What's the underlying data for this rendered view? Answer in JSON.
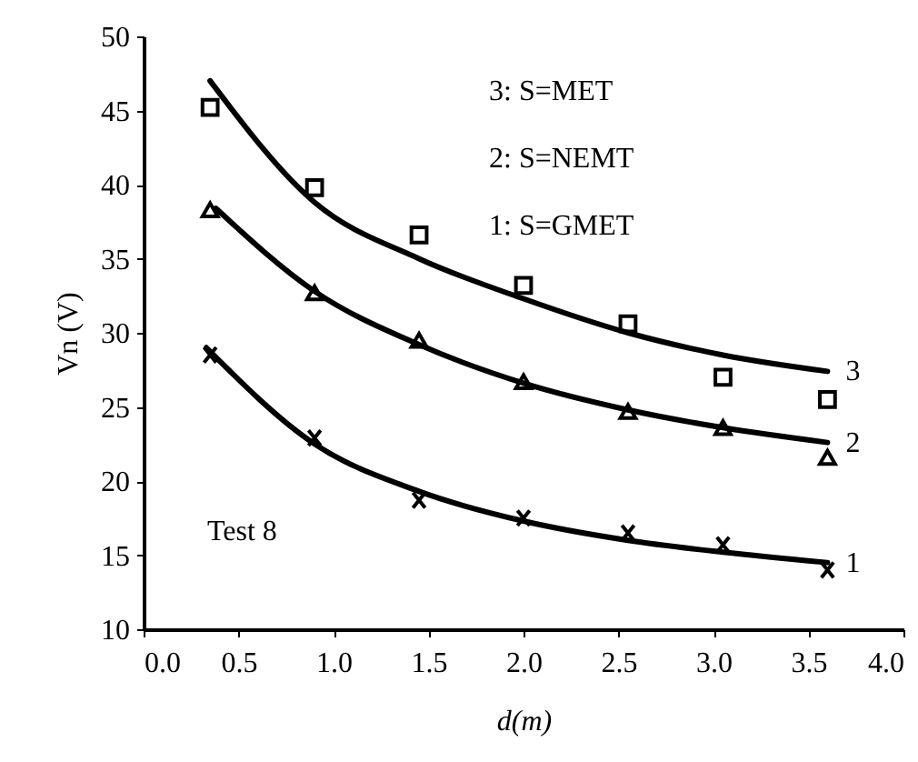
{
  "chart_data": {
    "type": "scatter",
    "xlabel": "d(m)",
    "ylabel": "Vn (V)",
    "xlim": [
      0,
      4
    ],
    "ylim": [
      10,
      50
    ],
    "xticks": [
      {
        "value": 0,
        "label": "0.0"
      },
      {
        "value": 0.5,
        "label": "0.5"
      },
      {
        "value": 1,
        "label": "1.0"
      },
      {
        "value": 1.5,
        "label": "1.5"
      },
      {
        "value": 2,
        "label": "2.0"
      },
      {
        "value": 2.5,
        "label": "2.5"
      },
      {
        "value": 3,
        "label": "3.0"
      },
      {
        "value": 3.5,
        "label": "3.5"
      },
      {
        "value": 4,
        "label": "4.0"
      }
    ],
    "yticks": [
      10,
      15,
      20,
      25,
      30,
      35,
      40,
      45,
      50
    ],
    "grid": false,
    "annotations": [
      "3:  S=MET",
      "2:  S=NEMT",
      "1:  S=GMET",
      "Test  8"
    ],
    "series": [
      {
        "marker": "square",
        "color": "#000000",
        "x": [
          0.35,
          0.9,
          1.45,
          2.0,
          2.55,
          3.05,
          3.6
        ],
        "values": [
          45.2,
          39.8,
          36.6,
          33.2,
          30.6,
          27.0,
          25.5
        ]
      },
      {
        "marker": "triangle",
        "color": "#000000",
        "x": [
          0.35,
          0.9,
          1.45,
          2.0,
          2.55,
          3.05,
          3.6
        ],
        "values": [
          38.3,
          32.7,
          29.5,
          26.7,
          24.7,
          23.6,
          21.6
        ]
      },
      {
        "marker": "cross",
        "color": "#000000",
        "x": [
          0.35,
          0.9,
          1.45,
          2.0,
          2.55,
          3.05,
          3.6
        ],
        "values": [
          28.5,
          22.9,
          18.7,
          17.5,
          16.5,
          15.7,
          14.0
        ]
      },
      {
        "type": "line",
        "name": "3",
        "color": "#000000",
        "x": [
          0.35,
          0.9,
          1.45,
          2.0,
          2.55,
          3.05,
          3.6
        ],
        "values": [
          47.0,
          38.8,
          35.0,
          32.3,
          30.0,
          28.5,
          27.4
        ]
      },
      {
        "type": "line",
        "name": "2",
        "color": "#000000",
        "x": [
          0.38,
          0.9,
          1.45,
          2.0,
          2.55,
          3.05,
          3.6
        ],
        "values": [
          38.4,
          32.8,
          29.2,
          26.6,
          24.8,
          23.6,
          22.6
        ]
      },
      {
        "type": "line",
        "name": "1",
        "color": "#000000",
        "x": [
          0.33,
          0.9,
          1.45,
          2.0,
          2.55,
          3.05,
          3.6
        ],
        "values": [
          29.0,
          22.5,
          19.3,
          17.3,
          16.0,
          15.2,
          14.5
        ]
      }
    ]
  }
}
